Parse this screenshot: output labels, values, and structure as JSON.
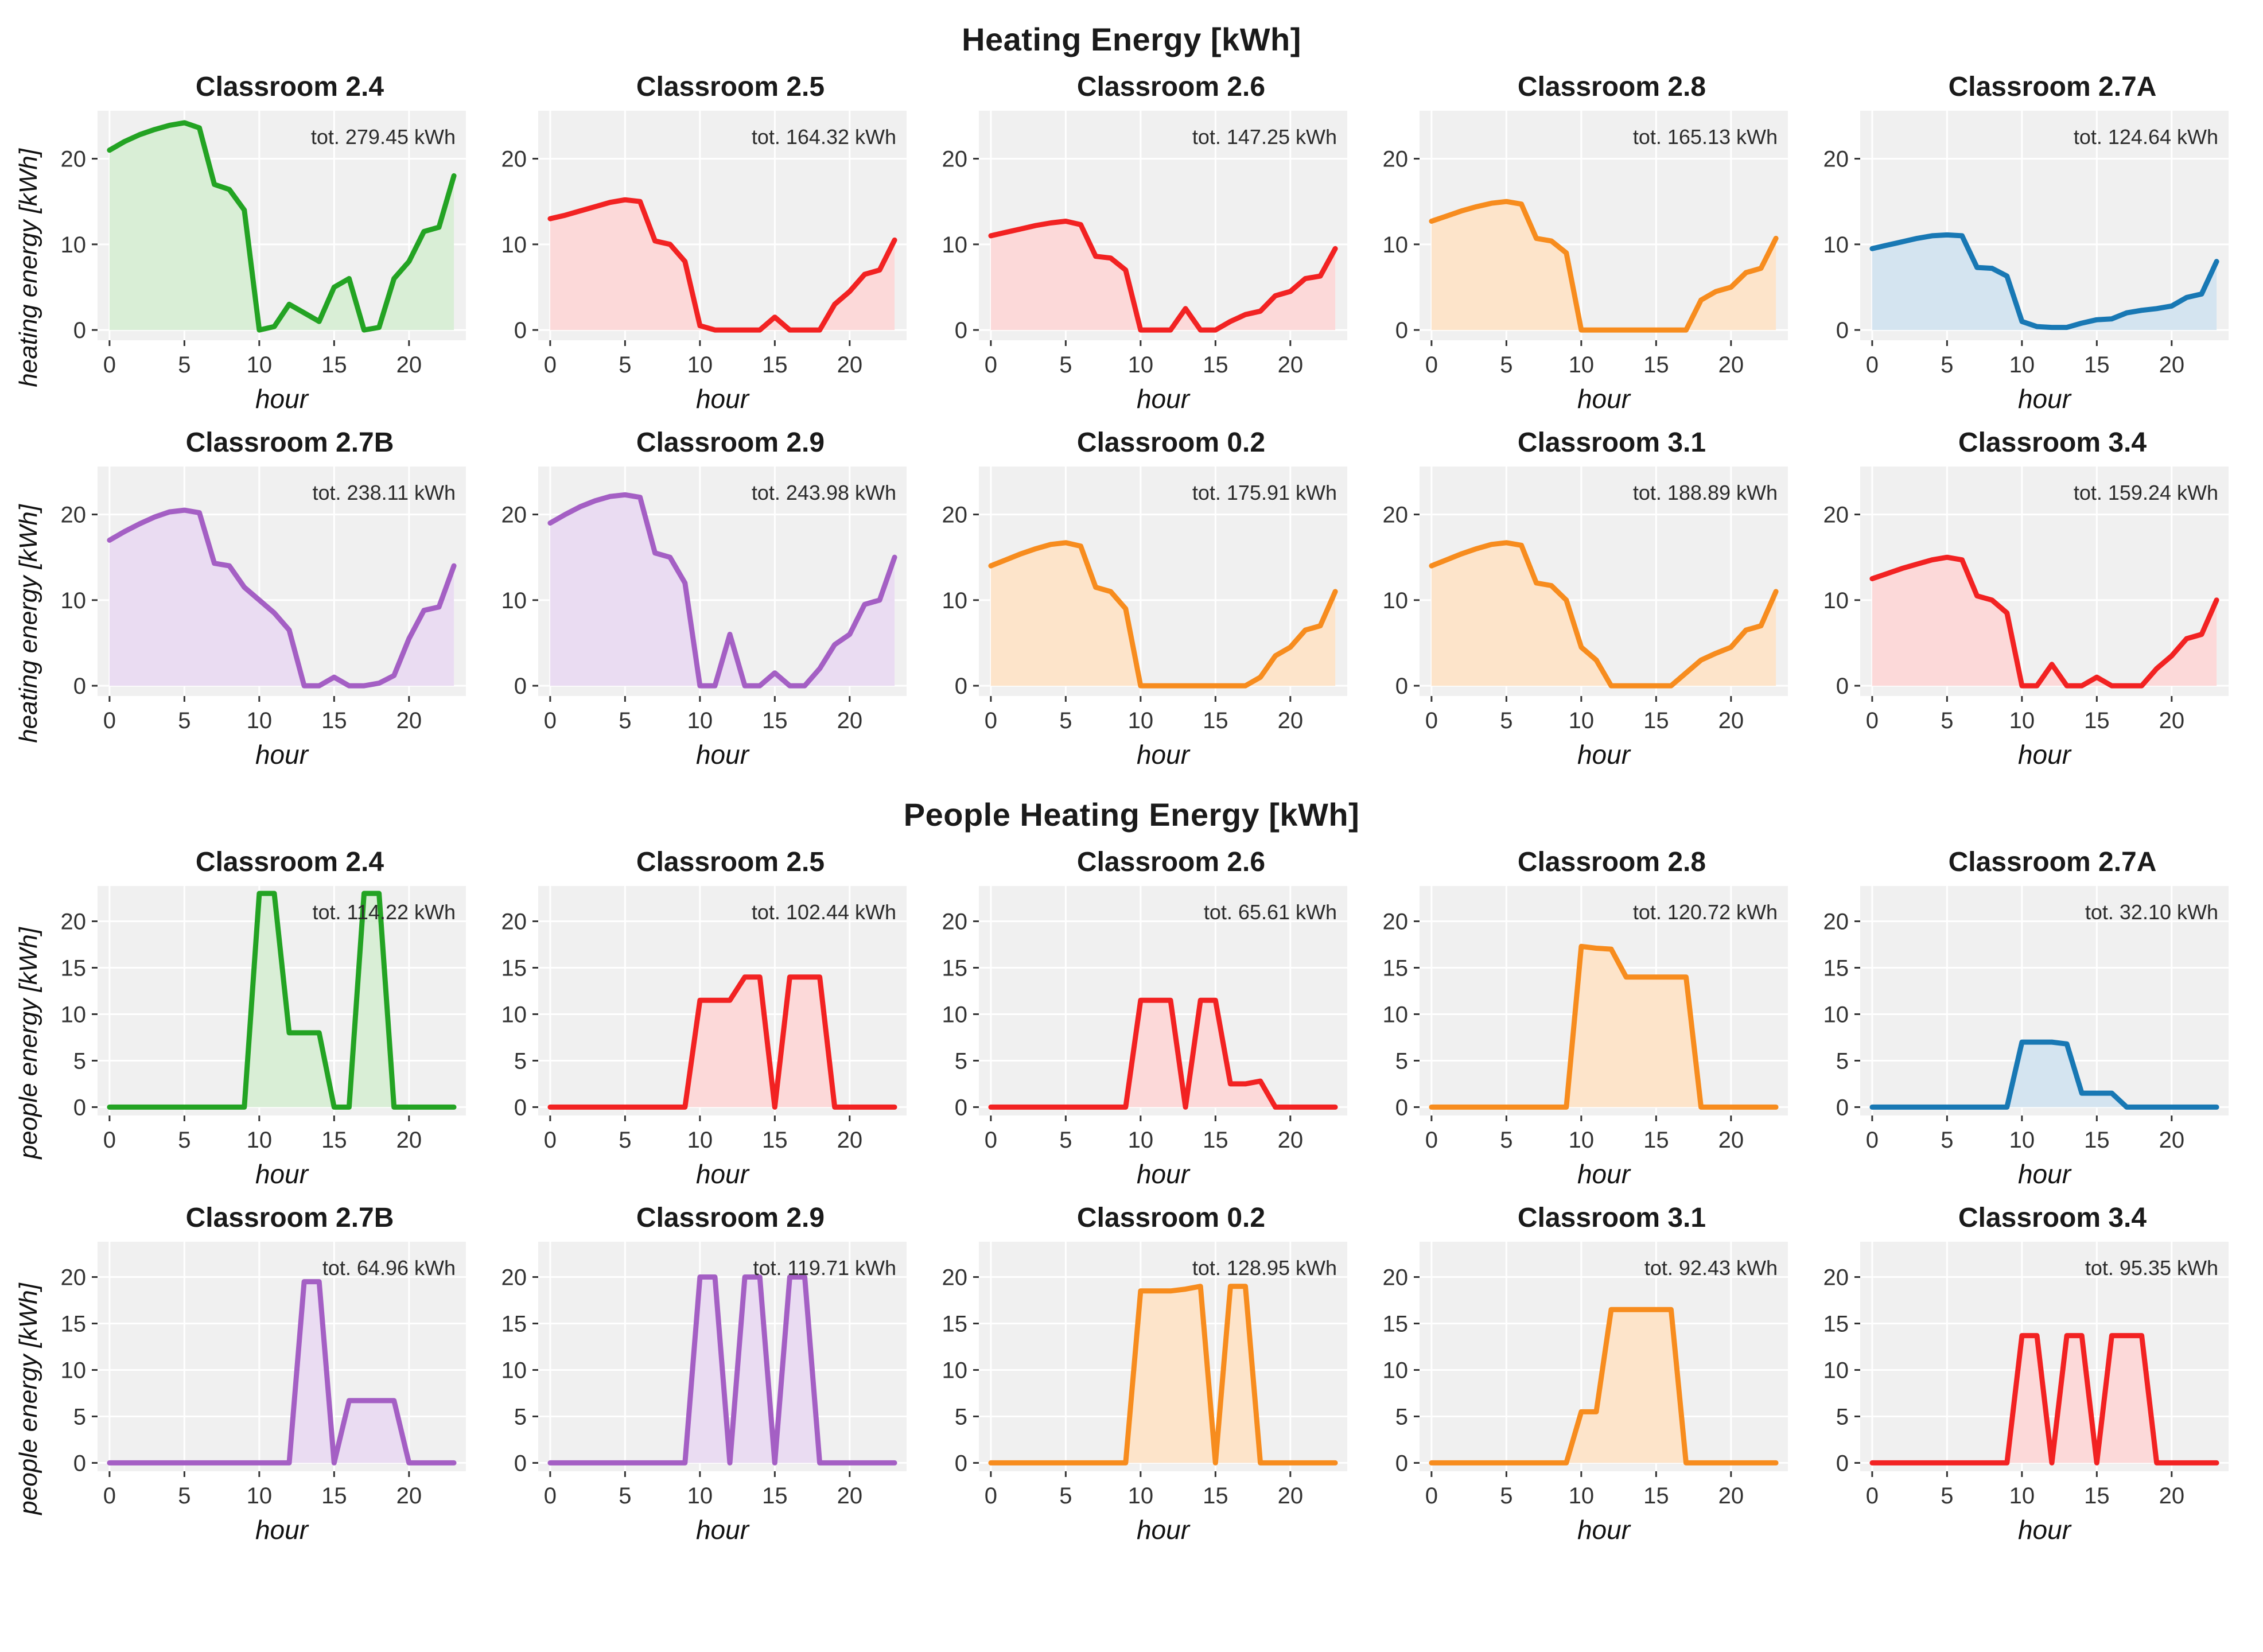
{
  "chart_data": {
    "type": "area",
    "x_hours": [
      0,
      1,
      2,
      3,
      4,
      5,
      6,
      7,
      8,
      9,
      10,
      11,
      12,
      13,
      14,
      15,
      16,
      17,
      18,
      19,
      20,
      21,
      22,
      23
    ],
    "sections": [
      {
        "title": "Heating Energy [kWh]",
        "ylabel": "heating energy [kWh]",
        "xlabel": "hour",
        "yticks": [
          0,
          10,
          20
        ],
        "xticks": [
          0,
          5,
          10,
          15,
          20
        ],
        "ylim": [
          -1.2,
          25.6
        ],
        "grid": true,
        "legend": "none",
        "charts": [
          {
            "title": "Classroom 2.4",
            "total_label": "tot. 279.45 kWh",
            "total_kwh": 279.45,
            "color": "#23a323",
            "fill": "#d9eed6",
            "values": [
              21,
              22,
              22.8,
              23.4,
              23.9,
              24.2,
              23.6,
              17,
              16.4,
              14,
              0,
              0.4,
              3,
              2,
              1,
              5,
              6,
              0,
              0.3,
              6,
              8,
              11.5,
              12,
              18
            ]
          },
          {
            "title": "Classroom 2.5",
            "total_label": "tot. 164.32 kWh",
            "total_kwh": 164.32,
            "color": "#f22222",
            "fill": "#fcd9d9",
            "values": [
              13,
              13.4,
              13.9,
              14.4,
              14.9,
              15.2,
              15,
              10.4,
              10,
              8,
              0.5,
              0,
              0,
              0,
              0,
              1.5,
              0,
              0,
              0,
              3,
              4.5,
              6.5,
              7,
              10.5
            ]
          },
          {
            "title": "Classroom 2.6",
            "total_label": "tot. 147.25 kWh",
            "total_kwh": 147.25,
            "color": "#f22222",
            "fill": "#fcd9d9",
            "values": [
              11,
              11.4,
              11.8,
              12.2,
              12.5,
              12.7,
              12.3,
              8.6,
              8.4,
              7,
              0,
              0,
              0,
              2.5,
              0,
              0,
              1,
              1.8,
              2.2,
              4,
              4.5,
              6,
              6.3,
              9.5
            ]
          },
          {
            "title": "Classroom 2.8",
            "total_label": "tot. 165.13 kWh",
            "total_kwh": 165.13,
            "color": "#f78c1e",
            "fill": "#fde4ca",
            "values": [
              12.7,
              13.3,
              13.9,
              14.4,
              14.8,
              15,
              14.7,
              10.7,
              10.4,
              9,
              0,
              0,
              0,
              0,
              0,
              0,
              0,
              0,
              3.5,
              4.5,
              5,
              6.7,
              7.2,
              10.7
            ]
          },
          {
            "title": "Classroom 2.7A",
            "total_label": "tot. 124.64 kWh",
            "total_kwh": 124.64,
            "color": "#1878b4",
            "fill": "#d4e4f0",
            "values": [
              9.5,
              9.9,
              10.3,
              10.7,
              11,
              11.1,
              11,
              7.3,
              7.2,
              6.3,
              1,
              0.4,
              0.3,
              0.3,
              0.8,
              1.2,
              1.3,
              2,
              2.3,
              2.5,
              2.8,
              3.8,
              4.2,
              8
            ]
          },
          {
            "title": "Classroom 2.7B",
            "total_label": "tot. 238.11 kWh",
            "total_kwh": 238.11,
            "color": "#a45fc4",
            "fill": "#eadcf2",
            "values": [
              17,
              18,
              18.9,
              19.7,
              20.3,
              20.5,
              20.2,
              14.3,
              14,
              11.5,
              10,
              8.5,
              6.5,
              0,
              0,
              1,
              0,
              0,
              0.3,
              1.2,
              5.5,
              8.8,
              9.2,
              14
            ]
          },
          {
            "title": "Classroom 2.9",
            "total_label": "tot. 243.98 kWh",
            "total_kwh": 243.98,
            "color": "#a45fc4",
            "fill": "#eadcf2",
            "values": [
              19,
              20,
              20.9,
              21.6,
              22.1,
              22.3,
              22,
              15.5,
              15,
              12,
              0,
              0,
              6,
              0,
              0,
              1.5,
              0,
              0,
              2,
              4.8,
              6,
              9.5,
              10,
              15
            ]
          },
          {
            "title": "Classroom 0.2",
            "total_label": "tot. 175.91 kWh",
            "total_kwh": 175.91,
            "color": "#f78c1e",
            "fill": "#fde4ca",
            "values": [
              14,
              14.7,
              15.4,
              16,
              16.5,
              16.7,
              16.3,
              11.5,
              11,
              9,
              0,
              0,
              0,
              0,
              0,
              0,
              0,
              0,
              1,
              3.5,
              4.5,
              6.5,
              7,
              11
            ]
          },
          {
            "title": "Classroom 3.1",
            "total_label": "tot. 188.89 kWh",
            "total_kwh": 188.89,
            "color": "#f78c1e",
            "fill": "#fde4ca",
            "values": [
              14,
              14.7,
              15.4,
              16,
              16.5,
              16.7,
              16.4,
              12,
              11.7,
              10,
              4.5,
              3,
              0,
              0,
              0,
              0,
              0,
              1.5,
              3,
              3.8,
              4.5,
              6.5,
              7,
              11
            ]
          },
          {
            "title": "Classroom 3.4",
            "total_label": "tot. 159.24 kWh",
            "total_kwh": 159.24,
            "color": "#f22222",
            "fill": "#fcd9d9",
            "values": [
              12.5,
              13.1,
              13.7,
              14.2,
              14.7,
              15,
              14.7,
              10.5,
              10,
              8.5,
              0,
              0,
              2.5,
              0,
              0,
              1,
              0,
              0,
              0,
              2,
              3.5,
              5.5,
              6,
              10
            ]
          }
        ]
      },
      {
        "title": "People Heating Energy [kWh]",
        "ylabel": "people energy [kWh]",
        "xlabel": "hour",
        "yticks": [
          0,
          5,
          10,
          15,
          20
        ],
        "xticks": [
          0,
          5,
          10,
          15,
          20
        ],
        "ylim": [
          -0.9,
          23.8
        ],
        "grid": true,
        "legend": "none",
        "charts": [
          {
            "title": "Classroom 2.4",
            "total_label": "tot. 114.22 kWh",
            "total_kwh": 114.22,
            "color": "#23a323",
            "fill": "#d9eed6",
            "values": [
              0,
              0,
              0,
              0,
              0,
              0,
              0,
              0,
              0,
              0,
              23,
              23,
              8,
              8,
              8,
              0,
              0,
              23,
              23,
              0,
              0,
              0,
              0,
              0
            ]
          },
          {
            "title": "Classroom 2.5",
            "total_label": "tot. 102.44 kWh",
            "total_kwh": 102.44,
            "color": "#f22222",
            "fill": "#fcd9d9",
            "values": [
              0,
              0,
              0,
              0,
              0,
              0,
              0,
              0,
              0,
              0,
              11.5,
              11.5,
              11.5,
              14,
              14,
              0,
              14,
              14,
              14,
              0,
              0,
              0,
              0,
              0
            ]
          },
          {
            "title": "Classroom 2.6",
            "total_label": "tot. 65.61 kWh",
            "total_kwh": 65.61,
            "color": "#f22222",
            "fill": "#fcd9d9",
            "values": [
              0,
              0,
              0,
              0,
              0,
              0,
              0,
              0,
              0,
              0,
              11.5,
              11.5,
              11.5,
              0,
              11.5,
              11.5,
              2.5,
              2.5,
              2.8,
              0,
              0,
              0,
              0,
              0
            ]
          },
          {
            "title": "Classroom 2.8",
            "total_label": "tot. 120.72 kWh",
            "total_kwh": 120.72,
            "color": "#f78c1e",
            "fill": "#fde4ca",
            "values": [
              0,
              0,
              0,
              0,
              0,
              0,
              0,
              0,
              0,
              0,
              17.3,
              17.1,
              17,
              14,
              14,
              14,
              14,
              14,
              0,
              0,
              0,
              0,
              0,
              0
            ]
          },
          {
            "title": "Classroom 2.7A",
            "total_label": "tot. 32.10 kWh",
            "total_kwh": 32.1,
            "color": "#1878b4",
            "fill": "#d4e4f0",
            "values": [
              0,
              0,
              0,
              0,
              0,
              0,
              0,
              0,
              0,
              0,
              7,
              7,
              7,
              6.8,
              1.5,
              1.5,
              1.5,
              0,
              0,
              0,
              0,
              0,
              0,
              0
            ]
          },
          {
            "title": "Classroom 2.7B",
            "total_label": "tot. 64.96 kWh",
            "total_kwh": 64.96,
            "color": "#a45fc4",
            "fill": "#eadcf2",
            "values": [
              0,
              0,
              0,
              0,
              0,
              0,
              0,
              0,
              0,
              0,
              0,
              0,
              0,
              19.5,
              19.5,
              0,
              6.7,
              6.7,
              6.7,
              6.7,
              0,
              0,
              0,
              0
            ]
          },
          {
            "title": "Classroom 2.9",
            "total_label": "tot. 119.71 kWh",
            "total_kwh": 119.71,
            "color": "#a45fc4",
            "fill": "#eadcf2",
            "values": [
              0,
              0,
              0,
              0,
              0,
              0,
              0,
              0,
              0,
              0,
              20,
              20,
              0,
              20,
              20,
              0,
              20,
              20,
              0,
              0,
              0,
              0,
              0,
              0
            ]
          },
          {
            "title": "Classroom 0.2",
            "total_label": "tot. 128.95 kWh",
            "total_kwh": 128.95,
            "color": "#f78c1e",
            "fill": "#fde4ca",
            "values": [
              0,
              0,
              0,
              0,
              0,
              0,
              0,
              0,
              0,
              0,
              18.5,
              18.5,
              18.5,
              18.7,
              19,
              0,
              19,
              19,
              0,
              0,
              0,
              0,
              0,
              0
            ]
          },
          {
            "title": "Classroom 3.1",
            "total_label": "tot. 92.43 kWh",
            "total_kwh": 92.43,
            "color": "#f78c1e",
            "fill": "#fde4ca",
            "values": [
              0,
              0,
              0,
              0,
              0,
              0,
              0,
              0,
              0,
              0,
              5.5,
              5.5,
              16.5,
              16.5,
              16.5,
              16.5,
              16.5,
              0,
              0,
              0,
              0,
              0,
              0,
              0
            ]
          },
          {
            "title": "Classroom 3.4",
            "total_label": "tot. 95.35 kWh",
            "total_kwh": 95.35,
            "color": "#f22222",
            "fill": "#fcd9d9",
            "values": [
              0,
              0,
              0,
              0,
              0,
              0,
              0,
              0,
              0,
              0,
              13.7,
              13.7,
              0,
              13.7,
              13.7,
              0,
              13.7,
              13.7,
              13.7,
              0,
              0,
              0,
              0,
              0
            ]
          }
        ]
      }
    ],
    "plot_style": {
      "panel_background": "#f0f0f0",
      "grid_color": "#ffffff",
      "tick_color": "#333333",
      "annotation_color": "#2b2b2b"
    }
  }
}
